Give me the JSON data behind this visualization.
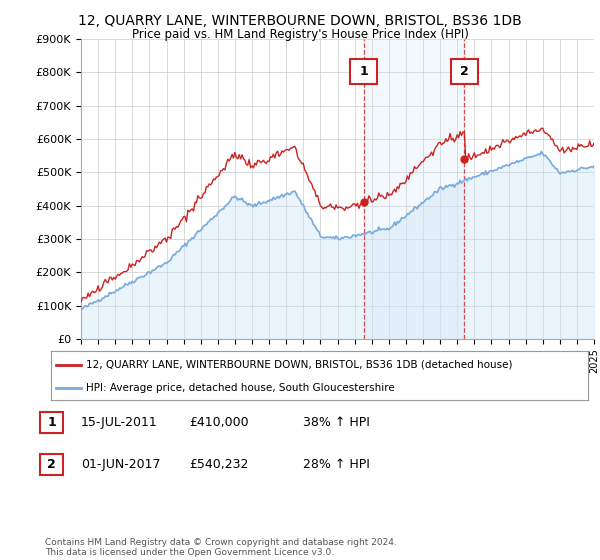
{
  "title": "12, QUARRY LANE, WINTERBOURNE DOWN, BRISTOL, BS36 1DB",
  "subtitle": "Price paid vs. HM Land Registry's House Price Index (HPI)",
  "ylim": [
    0,
    900000
  ],
  "yticks": [
    0,
    100000,
    200000,
    300000,
    400000,
    500000,
    600000,
    700000,
    800000,
    900000
  ],
  "ytick_labels": [
    "£0",
    "£100K",
    "£200K",
    "£300K",
    "£400K",
    "£500K",
    "£600K",
    "£700K",
    "£800K",
    "£900K"
  ],
  "hpi_color": "#7aaadd",
  "hpi_fill_color": "#ddeeff",
  "property_color": "#cc2222",
  "background_color": "#ffffff",
  "grid_color": "#cccccc",
  "marker1_x": 2011.54,
  "marker1_y": 410000,
  "marker2_x": 2017.42,
  "marker2_y": 540232,
  "legend_property": "12, QUARRY LANE, WINTERBOURNE DOWN, BRISTOL, BS36 1DB (detached house)",
  "legend_hpi": "HPI: Average price, detached house, South Gloucestershire",
  "transaction1_date": "15-JUL-2011",
  "transaction1_price": "£410,000",
  "transaction1_hpi": "38% ↑ HPI",
  "transaction2_date": "01-JUN-2017",
  "transaction2_price": "£540,232",
  "transaction2_hpi": "28% ↑ HPI",
  "copyright_text": "Contains HM Land Registry data © Crown copyright and database right 2024.\nThis data is licensed under the Open Government Licence v3.0.",
  "xmin": 1995,
  "xmax": 2025,
  "hpi_data_x": [
    1995.0,
    1995.08,
    1995.17,
    1995.25,
    1995.33,
    1995.42,
    1995.5,
    1995.58,
    1995.67,
    1995.75,
    1995.83,
    1995.92,
    1996.0,
    1996.08,
    1996.17,
    1996.25,
    1996.33,
    1996.42,
    1996.5,
    1996.58,
    1996.67,
    1996.75,
    1996.83,
    1996.92,
    1997.0,
    1997.08,
    1997.17,
    1997.25,
    1997.33,
    1997.42,
    1997.5,
    1997.58,
    1997.67,
    1997.75,
    1997.83,
    1997.92,
    1998.0,
    1998.08,
    1998.17,
    1998.25,
    1998.33,
    1998.42,
    1998.5,
    1998.58,
    1998.67,
    1998.75,
    1998.83,
    1998.92,
    1999.0,
    1999.08,
    1999.17,
    1999.25,
    1999.33,
    1999.42,
    1999.5,
    1999.58,
    1999.67,
    1999.75,
    1999.83,
    1999.92,
    2000.0,
    2000.08,
    2000.17,
    2000.25,
    2000.33,
    2000.42,
    2000.5,
    2000.58,
    2000.67,
    2000.75,
    2000.83,
    2000.92,
    2001.0,
    2001.08,
    2001.17,
    2001.25,
    2001.33,
    2001.42,
    2001.5,
    2001.58,
    2001.67,
    2001.75,
    2001.83,
    2001.92,
    2002.0,
    2002.08,
    2002.17,
    2002.25,
    2002.33,
    2002.42,
    2002.5,
    2002.58,
    2002.67,
    2002.75,
    2002.83,
    2002.92,
    2003.0,
    2003.08,
    2003.17,
    2003.25,
    2003.33,
    2003.42,
    2003.5,
    2003.58,
    2003.67,
    2003.75,
    2003.83,
    2003.92,
    2004.0,
    2004.08,
    2004.17,
    2004.25,
    2004.33,
    2004.42,
    2004.5,
    2004.58,
    2004.67,
    2004.75,
    2004.83,
    2004.92,
    2005.0,
    2005.08,
    2005.17,
    2005.25,
    2005.33,
    2005.42,
    2005.5,
    2005.58,
    2005.67,
    2005.75,
    2005.83,
    2005.92,
    2006.0,
    2006.08,
    2006.17,
    2006.25,
    2006.33,
    2006.42,
    2006.5,
    2006.58,
    2006.67,
    2006.75,
    2006.83,
    2006.92,
    2007.0,
    2007.08,
    2007.17,
    2007.25,
    2007.33,
    2007.42,
    2007.5,
    2007.58,
    2007.67,
    2007.75,
    2007.83,
    2007.92,
    2008.0,
    2008.08,
    2008.17,
    2008.25,
    2008.33,
    2008.42,
    2008.5,
    2008.58,
    2008.67,
    2008.75,
    2008.83,
    2008.92,
    2009.0,
    2009.08,
    2009.17,
    2009.25,
    2009.33,
    2009.42,
    2009.5,
    2009.58,
    2009.67,
    2009.75,
    2009.83,
    2009.92,
    2010.0,
    2010.08,
    2010.17,
    2010.25,
    2010.33,
    2010.42,
    2010.5,
    2010.58,
    2010.67,
    2010.75,
    2010.83,
    2010.92,
    2011.0,
    2011.08,
    2011.17,
    2011.25,
    2011.33,
    2011.42,
    2011.5,
    2011.58,
    2011.67,
    2011.75,
    2011.83,
    2011.92,
    2012.0,
    2012.08,
    2012.17,
    2012.25,
    2012.33,
    2012.42,
    2012.5,
    2012.58,
    2012.67,
    2012.75,
    2012.83,
    2012.92,
    2013.0,
    2013.08,
    2013.17,
    2013.25,
    2013.33,
    2013.42,
    2013.5,
    2013.58,
    2013.67,
    2013.75,
    2013.83,
    2013.92,
    2014.0,
    2014.08,
    2014.17,
    2014.25,
    2014.33,
    2014.42,
    2014.5,
    2014.58,
    2014.67,
    2014.75,
    2014.83,
    2014.92,
    2015.0,
    2015.08,
    2015.17,
    2015.25,
    2015.33,
    2015.42,
    2015.5,
    2015.58,
    2015.67,
    2015.75,
    2015.83,
    2015.92,
    2016.0,
    2016.08,
    2016.17,
    2016.25,
    2016.33,
    2016.42,
    2016.5,
    2016.58,
    2016.67,
    2016.75,
    2016.83,
    2016.92,
    2017.0,
    2017.08,
    2017.17,
    2017.25,
    2017.33,
    2017.42,
    2017.5,
    2017.58,
    2017.67,
    2017.75,
    2017.83,
    2017.92,
    2018.0,
    2018.08,
    2018.17,
    2018.25,
    2018.33,
    2018.42,
    2018.5,
    2018.58,
    2018.67,
    2018.75,
    2018.83,
    2018.92,
    2019.0,
    2019.08,
    2019.17,
    2019.25,
    2019.33,
    2019.42,
    2019.5,
    2019.58,
    2019.67,
    2019.75,
    2019.83,
    2019.92,
    2020.0,
    2020.08,
    2020.17,
    2020.25,
    2020.33,
    2020.42,
    2020.5,
    2020.58,
    2020.67,
    2020.75,
    2020.83,
    2020.92,
    2021.0,
    2021.08,
    2021.17,
    2021.25,
    2021.33,
    2021.42,
    2021.5,
    2021.58,
    2021.67,
    2021.75,
    2021.83,
    2021.92,
    2022.0,
    2022.08,
    2022.17,
    2022.25,
    2022.33,
    2022.42,
    2022.5,
    2022.58,
    2022.67,
    2022.75,
    2022.83,
    2022.92,
    2023.0,
    2023.08,
    2023.17,
    2023.25,
    2023.33,
    2023.42,
    2023.5,
    2023.58,
    2023.67,
    2023.75,
    2023.83,
    2023.92,
    2024.0,
    2024.08,
    2024.17,
    2024.25,
    2024.33,
    2024.42,
    2024.5,
    2024.58,
    2024.67,
    2024.75,
    2024.83,
    2024.92
  ],
  "hpi_data_y": [
    88000,
    89000,
    89500,
    90000,
    90500,
    91000,
    91500,
    92000,
    92500,
    93000,
    93500,
    94000,
    94500,
    95000,
    96000,
    97000,
    98000,
    99000,
    100000,
    101000,
    102000,
    103000,
    104000,
    105000,
    106000,
    108000,
    110000,
    112000,
    114000,
    116000,
    118000,
    120000,
    122000,
    124000,
    126000,
    128000,
    130000,
    132000,
    134000,
    136000,
    138000,
    140000,
    142000,
    144000,
    146000,
    148000,
    150000,
    152000,
    155000,
    158000,
    161000,
    164000,
    167000,
    170000,
    174000,
    178000,
    182000,
    186000,
    190000,
    194000,
    198000,
    202000,
    206000,
    210000,
    214000,
    218000,
    222000,
    226000,
    230000,
    234000,
    238000,
    242000,
    246000,
    249000,
    252000,
    255000,
    257000,
    259000,
    261000,
    263000,
    265000,
    267000,
    268000,
    269000,
    272000,
    276000,
    281000,
    286000,
    292000,
    298000,
    305000,
    312000,
    319000,
    326000,
    333000,
    340000,
    347000,
    352000,
    357000,
    361000,
    364000,
    367000,
    370000,
    372000,
    374000,
    376000,
    377000,
    378000,
    380000,
    383000,
    386000,
    389000,
    392000,
    394000,
    396000,
    397000,
    398000,
    398500,
    399000,
    399500,
    400000,
    400500,
    401000,
    401500,
    402000,
    402500,
    403000,
    403500,
    404000,
    404500,
    405000,
    405500,
    406000,
    407000,
    409000,
    411000,
    413000,
    415000,
    418000,
    421000,
    424000,
    427000,
    430000,
    433000,
    436000,
    438000,
    439000,
    440000,
    440500,
    441000,
    441000,
    440000,
    439000,
    438000,
    436000,
    434000,
    432000,
    428000,
    424000,
    420000,
    415000,
    410000,
    403000,
    395000,
    385000,
    373000,
    360000,
    346000,
    334000,
    325000,
    318000,
    313000,
    309000,
    306000,
    304000,
    303000,
    303000,
    304000,
    306000,
    309000,
    312000,
    315000,
    318000,
    320000,
    322000,
    323000,
    324000,
    324500,
    325000,
    325000,
    325000,
    325000,
    325000,
    326000,
    327000,
    328000,
    329000,
    330000,
    330000,
    330000,
    330000,
    330000,
    329000,
    329000,
    328000,
    328000,
    328000,
    329000,
    330000,
    331000,
    332000,
    333000,
    334000,
    335000,
    336000,
    337000,
    338000,
    340000,
    343000,
    346000,
    350000,
    354000,
    358000,
    362000,
    366000,
    370000,
    374000,
    378000,
    382000,
    387000,
    392000,
    397000,
    402000,
    407000,
    412000,
    417000,
    422000,
    427000,
    432000,
    437000,
    442000,
    447000,
    452000,
    457000,
    461000,
    464000,
    467000,
    470000,
    472000,
    474000,
    476000,
    478000,
    480000,
    483000,
    486000,
    490000,
    494000,
    498000,
    502000,
    505000,
    508000,
    510000,
    511000,
    512000,
    513000,
    515000,
    517000,
    519000,
    421000,
    423000,
    425000,
    427000,
    429000,
    430000,
    431000,
    432000,
    433000,
    435000,
    437000,
    439000,
    441000,
    443000,
    445000,
    447000,
    449000,
    451000,
    453000,
    455000,
    457000,
    459000,
    461000,
    463000,
    465000,
    467000,
    469000,
    471000,
    473000,
    475000,
    477000,
    479000,
    481000,
    483000,
    485000,
    487000,
    489000,
    491000,
    493000,
    495000,
    497000,
    499000,
    501000,
    503000,
    505000,
    510000,
    516000,
    523000,
    530000,
    537000,
    545000,
    553000,
    558000,
    560000,
    558000,
    555000,
    551000,
    546000,
    540000,
    533000,
    526000,
    519000,
    511000,
    503000,
    496000,
    490000,
    485000,
    481000,
    478000,
    476000,
    475000,
    474000,
    473000,
    472000,
    471000,
    470000,
    468000,
    466000,
    464000,
    462000,
    460000,
    459000,
    458000,
    458000,
    458000,
    459000,
    460000,
    461000,
    463000,
    465000,
    467000,
    469000,
    471000,
    474000,
    477000,
    480000,
    484000,
    488000,
    492000,
    496000,
    499000,
    502000,
    504000,
    506000
  ]
}
